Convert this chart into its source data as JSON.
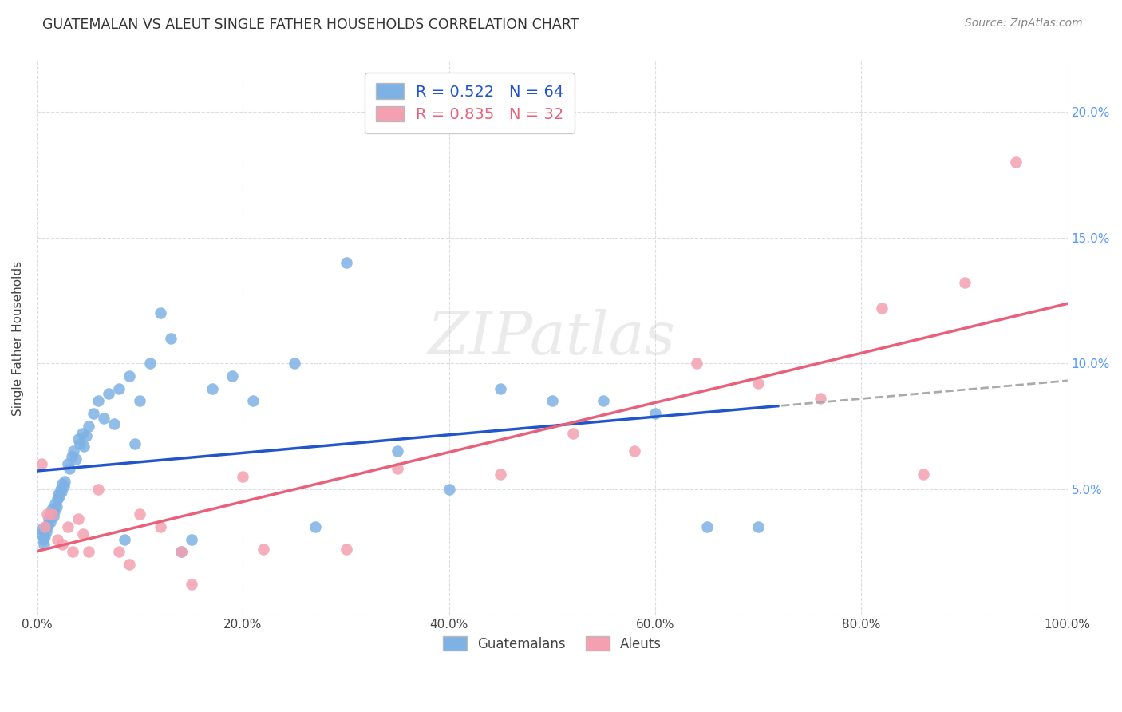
{
  "title": "GUATEMALAN VS ALEUT SINGLE FATHER HOUSEHOLDS CORRELATION CHART",
  "source": "Source: ZipAtlas.com",
  "ylabel": "Single Father Households",
  "xlim": [
    0.0,
    1.0
  ],
  "ylim": [
    0.0,
    0.22
  ],
  "xtick_vals": [
    0.0,
    0.2,
    0.4,
    0.6,
    0.8,
    1.0
  ],
  "xticklabels": [
    "0.0%",
    "20.0%",
    "40.0%",
    "60.0%",
    "80.0%",
    "100.0%"
  ],
  "ytick_vals": [
    0.0,
    0.05,
    0.1,
    0.15,
    0.2
  ],
  "yticklabels": [
    "",
    "5.0%",
    "10.0%",
    "15.0%",
    "20.0%"
  ],
  "guatemalan_R": 0.522,
  "guatemalan_N": 64,
  "aleut_R": 0.835,
  "aleut_N": 32,
  "blue_scatter_color": "#7EB2E4",
  "pink_scatter_color": "#F4A0B0",
  "blue_line_color": "#2255CC",
  "pink_line_color": "#E8607A",
  "dashed_line_color": "#AAAAAA",
  "background_color": "#FFFFFF",
  "grid_color": "#DDDDDD",
  "right_tick_color": "#5599FF",
  "guatemalan_x": [
    0.004,
    0.005,
    0.006,
    0.007,
    0.008,
    0.009,
    0.01,
    0.011,
    0.012,
    0.013,
    0.014,
    0.015,
    0.016,
    0.017,
    0.018,
    0.019,
    0.02,
    0.021,
    0.022,
    0.023,
    0.024,
    0.025,
    0.026,
    0.027,
    0.03,
    0.032,
    0.034,
    0.036,
    0.038,
    0.04,
    0.042,
    0.044,
    0.046,
    0.048,
    0.05,
    0.055,
    0.06,
    0.065,
    0.07,
    0.075,
    0.08,
    0.085,
    0.09,
    0.095,
    0.1,
    0.11,
    0.12,
    0.13,
    0.14,
    0.15,
    0.17,
    0.19,
    0.21,
    0.25,
    0.27,
    0.3,
    0.35,
    0.4,
    0.45,
    0.5,
    0.55,
    0.6,
    0.65,
    0.7
  ],
  "guatemalan_y": [
    0.032,
    0.034,
    0.03,
    0.028,
    0.031,
    0.033,
    0.035,
    0.036,
    0.038,
    0.037,
    0.04,
    0.042,
    0.039,
    0.041,
    0.044,
    0.043,
    0.046,
    0.048,
    0.047,
    0.05,
    0.049,
    0.052,
    0.051,
    0.053,
    0.06,
    0.058,
    0.063,
    0.065,
    0.062,
    0.07,
    0.068,
    0.072,
    0.067,
    0.071,
    0.075,
    0.08,
    0.085,
    0.078,
    0.088,
    0.076,
    0.09,
    0.03,
    0.095,
    0.068,
    0.085,
    0.1,
    0.12,
    0.11,
    0.025,
    0.03,
    0.09,
    0.095,
    0.085,
    0.1,
    0.035,
    0.14,
    0.065,
    0.05,
    0.09,
    0.085,
    0.085,
    0.08,
    0.035,
    0.035
  ],
  "aleut_x": [
    0.005,
    0.008,
    0.01,
    0.015,
    0.02,
    0.025,
    0.03,
    0.035,
    0.04,
    0.045,
    0.05,
    0.06,
    0.08,
    0.09,
    0.1,
    0.12,
    0.14,
    0.15,
    0.2,
    0.22,
    0.3,
    0.35,
    0.45,
    0.52,
    0.58,
    0.64,
    0.7,
    0.76,
    0.82,
    0.86,
    0.9,
    0.95
  ],
  "aleut_y": [
    0.06,
    0.035,
    0.04,
    0.04,
    0.03,
    0.028,
    0.035,
    0.025,
    0.038,
    0.032,
    0.025,
    0.05,
    0.025,
    0.02,
    0.04,
    0.035,
    0.025,
    0.012,
    0.055,
    0.026,
    0.026,
    0.058,
    0.056,
    0.072,
    0.065,
    0.1,
    0.092,
    0.086,
    0.122,
    0.056,
    0.132,
    0.18
  ]
}
